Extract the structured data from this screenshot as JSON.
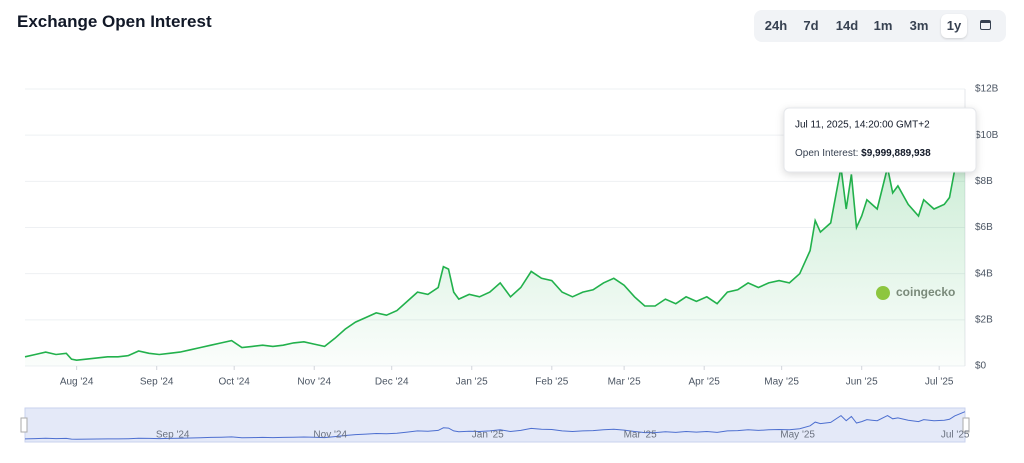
{
  "header": {
    "title": "Exchange Open Interest"
  },
  "range_buttons": [
    "24h",
    "7d",
    "14d",
    "1m",
    "3m",
    "1y"
  ],
  "tooltip": {
    "date": "Jul 11, 2025, 14:20:00 GMT+2",
    "value": "$9,999,889,938"
  },
  "watermark": "coingecko",
  "navigator_labels": [
    "Sep '24",
    "Nov '24",
    "Jan '25",
    "Mar '25",
    "May '25",
    "Jul '25"
  ],
  "chart_data": {
    "type": "line",
    "x": [
      0,
      4,
      8,
      12,
      16,
      18,
      20,
      24,
      28,
      32,
      36,
      40,
      44,
      48,
      52,
      56,
      60,
      64,
      68,
      72,
      76,
      80,
      84,
      88,
      92,
      96,
      100,
      104,
      108,
      112,
      116,
      120,
      124,
      128,
      132,
      136,
      140,
      144,
      148,
      152,
      156,
      160,
      162,
      164,
      166,
      168,
      172,
      176,
      180,
      184,
      188,
      192,
      196,
      200,
      204,
      208,
      212,
      216,
      220,
      224,
      228,
      232,
      236,
      240,
      244,
      248,
      252,
      256,
      260,
      264,
      268,
      272,
      276,
      280,
      284,
      288,
      292,
      296,
      300,
      304,
      306,
      308,
      312,
      316,
      318,
      320,
      322,
      324,
      326,
      328,
      330,
      334,
      336,
      338,
      342,
      346,
      348,
      352,
      356,
      358,
      360,
      364
    ],
    "series": [
      {
        "name": "Open Interest",
        "color": "#22b14c",
        "values": [
          0.4,
          0.5,
          0.6,
          0.5,
          0.55,
          0.3,
          0.25,
          0.3,
          0.35,
          0.4,
          0.4,
          0.45,
          0.65,
          0.55,
          0.5,
          0.55,
          0.6,
          0.7,
          0.8,
          0.9,
          1.0,
          1.1,
          0.8,
          0.85,
          0.9,
          0.85,
          0.9,
          1.0,
          1.05,
          0.95,
          0.85,
          1.2,
          1.6,
          1.9,
          2.1,
          2.3,
          2.2,
          2.4,
          2.8,
          3.2,
          3.1,
          3.4,
          4.3,
          4.2,
          3.2,
          2.9,
          3.1,
          3.0,
          3.2,
          3.6,
          3.0,
          3.4,
          4.1,
          3.8,
          3.7,
          3.2,
          3.0,
          3.2,
          3.3,
          3.6,
          3.8,
          3.5,
          3.0,
          2.6,
          2.6,
          2.9,
          2.7,
          3.0,
          2.8,
          3.0,
          2.7,
          3.2,
          3.3,
          3.6,
          3.4,
          3.6,
          3.7,
          3.6,
          4.0,
          5.0,
          6.3,
          5.8,
          6.2,
          8.6,
          6.8,
          8.3,
          6.0,
          6.5,
          7.2,
          7.0,
          6.8,
          8.6,
          7.5,
          7.8,
          7.0,
          6.5,
          7.2,
          6.8,
          7.0,
          7.3,
          8.5,
          10.0
        ]
      }
    ],
    "xlim": [
      0,
      364
    ],
    "xticks": [
      {
        "value": 20,
        "label": "Aug '24"
      },
      {
        "value": 51,
        "label": "Sep '24"
      },
      {
        "value": 81,
        "label": "Oct '24"
      },
      {
        "value": 112,
        "label": "Nov '24"
      },
      {
        "value": 142,
        "label": "Dec '24"
      },
      {
        "value": 173,
        "label": "Jan '25"
      },
      {
        "value": 204,
        "label": "Feb '25"
      },
      {
        "value": 232,
        "label": "Mar '25"
      },
      {
        "value": 263,
        "label": "Apr '25"
      },
      {
        "value": 293,
        "label": "May '25"
      },
      {
        "value": 324,
        "label": "Jun '25"
      },
      {
        "value": 354,
        "label": "Jul '25"
      }
    ],
    "ylim": [
      0,
      12
    ],
    "yticks": [
      {
        "value": 0,
        "label": "$0"
      },
      {
        "value": 2,
        "label": "$2B"
      },
      {
        "value": 4,
        "label": "$4B"
      },
      {
        "value": 6,
        "label": "$6B"
      },
      {
        "value": 8,
        "label": "$8B"
      },
      {
        "value": 10,
        "label": "$10B"
      },
      {
        "value": 12,
        "label": "$12B"
      }
    ],
    "grid": true
  }
}
